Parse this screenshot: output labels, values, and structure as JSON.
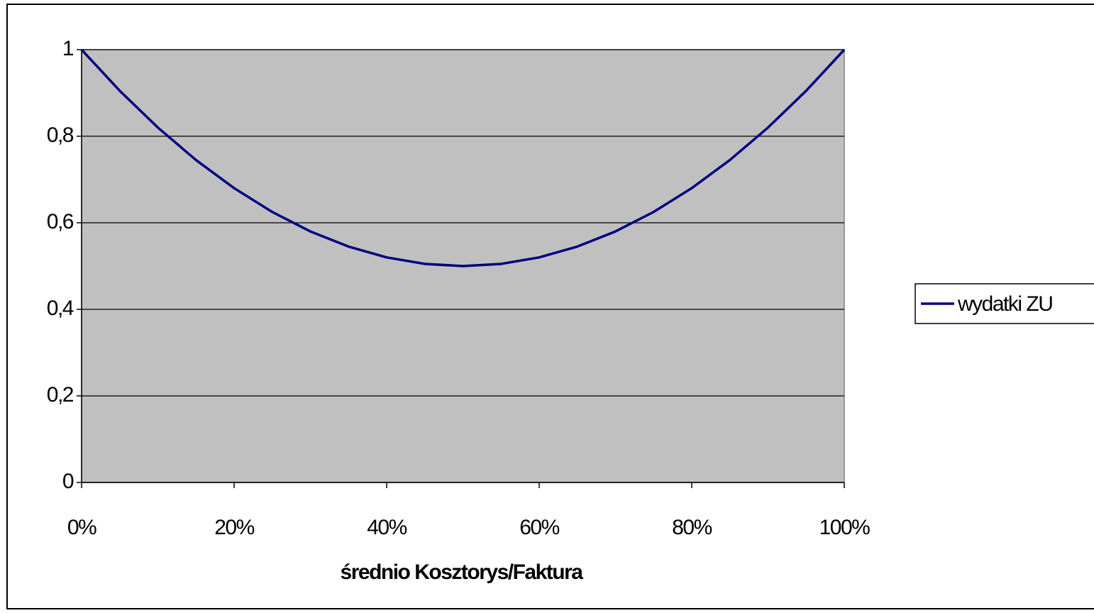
{
  "chart_data": {
    "type": "line",
    "x_label": "średnio Kosztorys/Faktura",
    "x": [
      0,
      5,
      10,
      15,
      20,
      25,
      30,
      35,
      40,
      45,
      50,
      55,
      60,
      65,
      70,
      75,
      80,
      85,
      90,
      95,
      100
    ],
    "series": [
      {
        "name": "wydatki ZU",
        "color": "#000080",
        "values": [
          1,
          0.905,
          0.82,
          0.745,
          0.68,
          0.625,
          0.58,
          0.545,
          0.52,
          0.505,
          0.5,
          0.505,
          0.52,
          0.545,
          0.58,
          0.625,
          0.68,
          0.745,
          0.82,
          0.905,
          1
        ]
      }
    ],
    "xlim": [
      0,
      100
    ],
    "xticks": [
      {
        "value": 0,
        "label": "0%"
      },
      {
        "value": 20,
        "label": "20%"
      },
      {
        "value": 40,
        "label": "40%"
      },
      {
        "value": 60,
        "label": "60%"
      },
      {
        "value": 80,
        "label": "80%"
      },
      {
        "value": 100,
        "label": "100%"
      }
    ],
    "ylim": [
      0,
      1
    ],
    "yticks": [
      0,
      {
        "value": 0.2,
        "label": "0,2"
      },
      {
        "value": 0.4,
        "label": "0,4"
      },
      {
        "value": 0.6,
        "label": "0,6"
      },
      {
        "value": 0.8,
        "label": "0,8"
      },
      1
    ],
    "grid": true,
    "legend": "right"
  }
}
